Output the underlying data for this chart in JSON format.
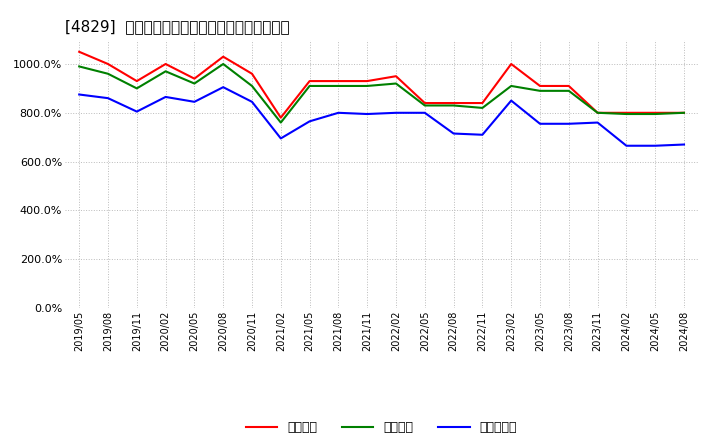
{
  "title": "[4829]  流動比率、当座比率、現預金比率の推移",
  "x_labels": [
    "2019/05",
    "2019/08",
    "2019/11",
    "2020/02",
    "2020/05",
    "2020/08",
    "2020/11",
    "2021/02",
    "2021/05",
    "2021/08",
    "2021/11",
    "2022/02",
    "2022/05",
    "2022/08",
    "2022/11",
    "2023/02",
    "2023/05",
    "2023/08",
    "2023/11",
    "2024/02",
    "2024/05",
    "2024/08"
  ],
  "ryudo": [
    1050,
    1000,
    930,
    1000,
    940,
    1030,
    960,
    780,
    930,
    930,
    930,
    950,
    840,
    840,
    840,
    1000,
    910,
    910,
    800,
    800,
    800,
    800
  ],
  "toza": [
    990,
    960,
    900,
    970,
    920,
    1000,
    910,
    760,
    910,
    910,
    910,
    920,
    830,
    830,
    820,
    910,
    890,
    890,
    800,
    795,
    795,
    800
  ],
  "genyo": [
    875,
    860,
    805,
    865,
    845,
    905,
    845,
    695,
    765,
    800,
    795,
    800,
    800,
    715,
    710,
    850,
    755,
    755,
    760,
    665,
    665,
    670
  ],
  "ylim": [
    0,
    1100
  ],
  "yticks": [
    0,
    200,
    400,
    600,
    800,
    1000
  ],
  "line_color_ryudo": "#ff0000",
  "line_color_toza": "#008000",
  "line_color_genyo": "#0000ff",
  "legend_labels": [
    "流動比率",
    "当座比率",
    "現預金比率"
  ],
  "bg_color": "#ffffff",
  "grid_color": "#bbbbbb",
  "title_fontsize": 11
}
